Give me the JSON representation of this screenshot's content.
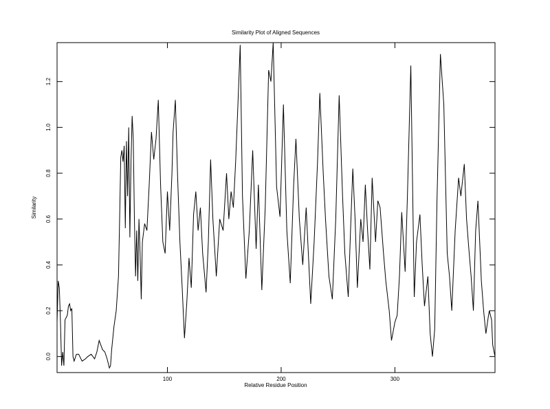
{
  "chart_data": {
    "type": "line",
    "title": "Similarity Plot of Aligned Sequences",
    "x_label": "Relative Residue Position",
    "y_label": "Similarity",
    "color": "#000000",
    "xlim": [
      3,
      388
    ],
    "xticks": [
      100,
      200,
      300
    ],
    "ylim": [
      -0.07,
      1.37
    ],
    "yticks": [
      {
        "value": 0,
        "label": "0.0"
      },
      0.2,
      0.4,
      0.6,
      0.8,
      {
        "value": 1,
        "label": "1.0"
      },
      1.2
    ],
    "x": [
      3,
      4,
      5,
      6,
      7,
      8,
      9,
      10,
      11,
      12,
      13,
      14,
      15,
      16,
      17,
      18,
      20,
      22,
      25,
      28,
      30,
      33,
      36,
      38,
      40,
      43,
      45,
      47,
      49,
      50,
      51,
      53,
      55,
      57,
      58,
      59,
      60,
      61,
      62,
      63,
      64,
      65,
      66,
      67,
      68,
      69,
      70,
      71,
      72,
      73,
      74,
      75,
      76,
      77,
      78,
      80,
      82,
      84,
      86,
      88,
      90,
      92,
      94,
      96,
      98,
      100,
      102,
      104,
      105,
      107,
      109,
      111,
      113,
      115,
      117,
      119,
      121,
      123,
      125,
      127,
      129,
      131,
      134,
      136,
      138,
      140,
      143,
      146,
      149,
      152,
      154,
      156,
      158,
      160,
      162,
      164,
      166,
      169,
      172,
      175,
      178,
      180,
      183,
      186,
      189,
      191,
      193,
      196,
      199,
      202,
      205,
      208,
      211,
      213,
      216,
      219,
      222,
      226,
      229,
      232,
      234,
      237,
      239,
      242,
      245,
      248,
      251,
      254,
      256,
      259,
      261,
      263,
      265,
      267,
      270,
      272,
      274,
      276,
      278,
      280,
      283,
      285,
      287,
      290,
      292,
      295,
      297,
      300,
      302,
      304,
      306,
      309,
      311,
      314,
      317,
      319,
      322,
      324,
      326,
      329,
      331,
      333,
      335,
      337,
      340,
      343,
      346,
      348,
      350,
      353,
      356,
      358,
      361,
      363,
      365,
      367,
      369,
      371,
      373,
      376,
      378,
      380,
      382,
      383,
      385,
      386,
      388
    ],
    "values": [
      0.15,
      0.33,
      0.3,
      0.15,
      -0.04,
      0.02,
      -0.04,
      0.16,
      0.17,
      0.18,
      0.22,
      0.23,
      0.2,
      0.21,
      0.0,
      -0.02,
      0.01,
      0.01,
      -0.02,
      -0.01,
      0.0,
      0.01,
      -0.01,
      0.02,
      0.07,
      0.03,
      0.02,
      -0.01,
      -0.05,
      -0.04,
      0.03,
      0.13,
      0.2,
      0.35,
      0.6,
      0.87,
      0.9,
      0.85,
      0.92,
      0.56,
      0.94,
      0.7,
      1.0,
      0.52,
      0.85,
      1.05,
      0.95,
      0.6,
      0.35,
      0.55,
      0.33,
      0.6,
      0.45,
      0.25,
      0.5,
      0.58,
      0.55,
      0.75,
      0.98,
      0.86,
      0.95,
      1.12,
      0.75,
      0.5,
      0.45,
      0.72,
      0.55,
      0.8,
      0.98,
      1.12,
      0.78,
      0.5,
      0.3,
      0.08,
      0.23,
      0.43,
      0.3,
      0.62,
      0.72,
      0.55,
      0.65,
      0.45,
      0.28,
      0.5,
      0.86,
      0.6,
      0.35,
      0.6,
      0.55,
      0.8,
      0.6,
      0.72,
      0.65,
      0.85,
      1.1,
      1.36,
      0.7,
      0.34,
      0.55,
      0.9,
      0.47,
      0.75,
      0.29,
      0.65,
      1.25,
      1.2,
      1.37,
      0.74,
      0.61,
      1.1,
      0.55,
      0.32,
      0.75,
      0.95,
      0.6,
      0.4,
      0.65,
      0.23,
      0.5,
      0.85,
      1.15,
      0.8,
      0.6,
      0.35,
      0.25,
      0.6,
      1.14,
      0.7,
      0.45,
      0.26,
      0.55,
      0.82,
      0.6,
      0.3,
      0.6,
      0.5,
      0.75,
      0.55,
      0.38,
      0.78,
      0.5,
      0.68,
      0.65,
      0.45,
      0.33,
      0.2,
      0.07,
      0.15,
      0.18,
      0.35,
      0.63,
      0.37,
      0.7,
      1.27,
      0.26,
      0.5,
      0.62,
      0.4,
      0.22,
      0.35,
      0.1,
      0.0,
      0.12,
      0.68,
      1.32,
      1.1,
      0.45,
      0.35,
      0.2,
      0.55,
      0.78,
      0.7,
      0.84,
      0.6,
      0.47,
      0.35,
      0.2,
      0.55,
      0.68,
      0.33,
      0.2,
      0.1,
      0.17,
      0.2,
      0.16,
      0.05,
      0.0
    ]
  }
}
